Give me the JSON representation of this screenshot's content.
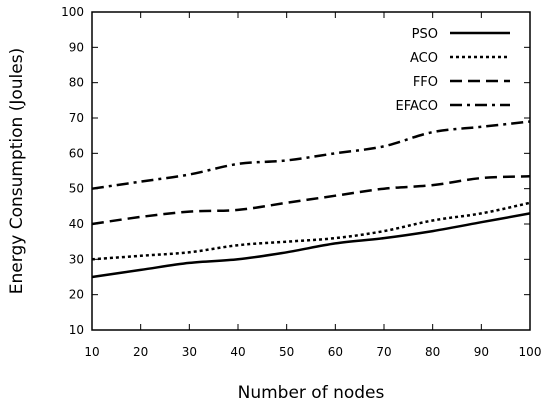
{
  "chart_data": {
    "type": "line",
    "title": "",
    "xlabel": "Number of nodes",
    "ylabel": "Energy Consumption (Joules)",
    "xlim": [
      10,
      100
    ],
    "ylim": [
      10,
      100
    ],
    "xticks": [
      10,
      20,
      30,
      40,
      50,
      60,
      70,
      80,
      90,
      100
    ],
    "yticks": [
      10,
      20,
      30,
      40,
      50,
      60,
      70,
      80,
      90,
      100
    ],
    "grid": false,
    "legend_position": "top-right",
    "x": [
      10,
      20,
      30,
      40,
      50,
      60,
      70,
      80,
      90,
      100
    ],
    "series": [
      {
        "name": "PSO",
        "dash": "solid",
        "values": [
          25,
          27,
          29,
          30,
          32,
          34.5,
          36,
          38,
          40.5,
          43
        ]
      },
      {
        "name": "ACO",
        "dash": "dotted",
        "values": [
          30,
          31,
          32,
          34,
          35,
          36,
          38,
          41,
          43,
          46
        ]
      },
      {
        "name": "FFO",
        "dash": "dashed",
        "values": [
          40,
          42,
          43.5,
          44,
          46,
          48,
          50,
          51,
          53,
          53.5
        ]
      },
      {
        "name": "EFACO",
        "dash": "dash-dot",
        "values": [
          50,
          52,
          54,
          57,
          58,
          60,
          62,
          66,
          67.5,
          69
        ]
      }
    ]
  }
}
